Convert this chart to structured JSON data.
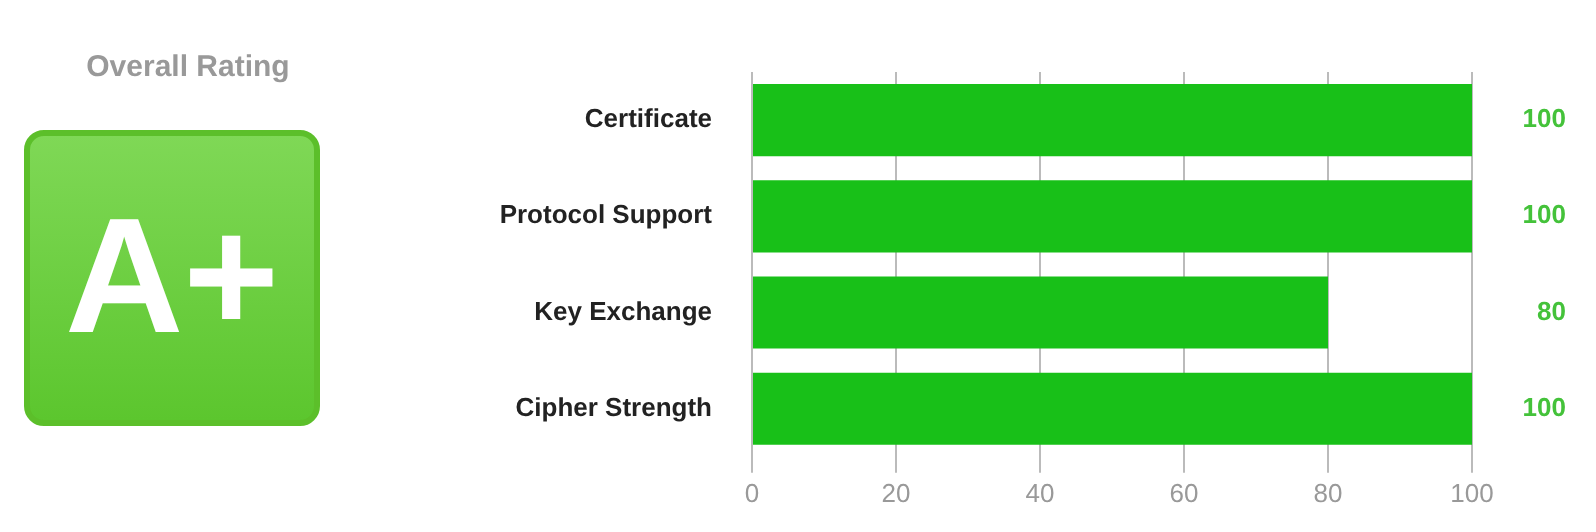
{
  "chart_data": [
    {
      "type": "other",
      "title": "Overall Rating",
      "annotations": [
        "A+"
      ]
    },
    {
      "type": "bar",
      "orientation": "horizontal",
      "categories": [
        "Certificate",
        "Protocol Support",
        "Key Exchange",
        "Cipher Strength"
      ],
      "values": [
        100,
        100,
        80,
        100
      ],
      "color": "#18c018",
      "xlim": [
        0,
        100
      ],
      "xticks": [
        0,
        20,
        40,
        60,
        80,
        100
      ],
      "grid": "x",
      "data_labels": true,
      "legend": false
    }
  ]
}
